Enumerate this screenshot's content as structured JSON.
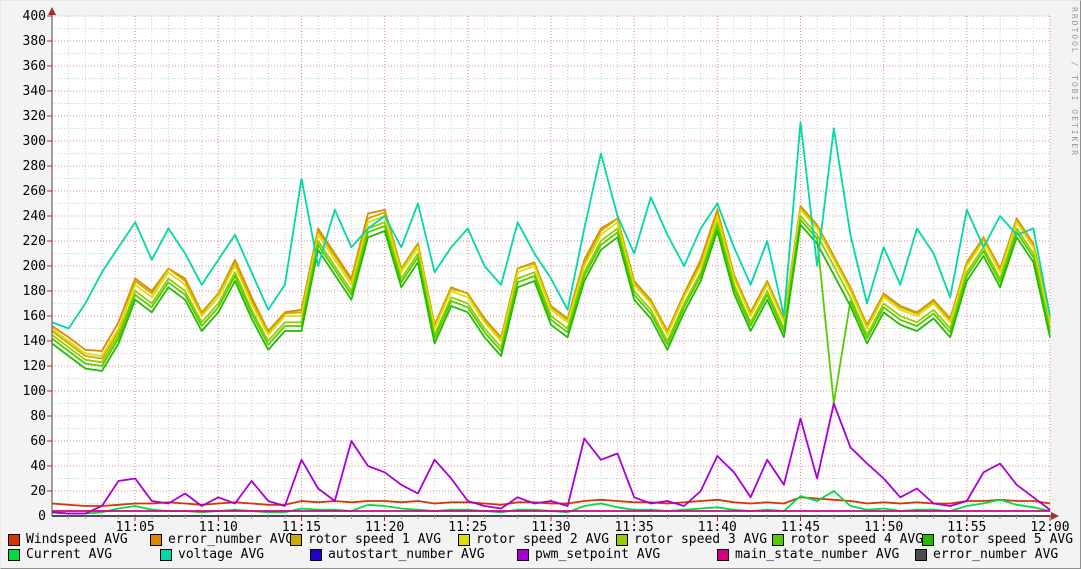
{
  "watermark": "RRDTOOL / TOBI OETIKER",
  "theme": {
    "background": "#f3f3f3",
    "plot_background": "#ffffff",
    "grid_major_color": "#e58a8a",
    "grid_minor_color": "#cccccc",
    "axis_color": "#4a4a4a",
    "arrow_color": "#a03030",
    "tick_major_color": "#cc2222",
    "tick_minor_color": "#cc8888",
    "text_color": "#000000",
    "watermark_color": "#9a9a9a"
  },
  "chart_data": {
    "type": "line",
    "title": "",
    "x_axis": {
      "start_label": "11:00",
      "end_label": "12:00",
      "total_minutes": 60,
      "minutes_per_point": 1,
      "major_tick_minutes": 5,
      "minor_tick_minutes": 1,
      "tick_labels": [
        "11:05",
        "11:10",
        "11:15",
        "11:20",
        "11:25",
        "11:30",
        "11:35",
        "11:40",
        "11:45",
        "11:50",
        "11:55",
        "12:00"
      ]
    },
    "y_axis": {
      "min": 0,
      "max": 400,
      "major_step": 20,
      "minor_step": 10,
      "tick_labels": [
        "0",
        "20",
        "40",
        "60",
        "80",
        "100",
        "120",
        "140",
        "160",
        "180",
        "200",
        "220",
        "240",
        "260",
        "280",
        "300",
        "320",
        "340",
        "360",
        "380",
        "400"
      ]
    },
    "series": [
      {
        "name": "Windspeed AVG",
        "color": "#d63600",
        "values": [
          10,
          9,
          8,
          8,
          9,
          10,
          10,
          11,
          10,
          9,
          10,
          11,
          10,
          9,
          9,
          12,
          11,
          12,
          11,
          12,
          12,
          11,
          12,
          10,
          11,
          11,
          10,
          9,
          11,
          11,
          10,
          10,
          12,
          13,
          12,
          11,
          11,
          10,
          11,
          12,
          13,
          11,
          10,
          11,
          10,
          15,
          14,
          13,
          12,
          10,
          11,
          10,
          11,
          10,
          10,
          12,
          12,
          13,
          12,
          12,
          10
        ]
      },
      {
        "name": "error_number AVG",
        "color": "#dd8800",
        "values": [
          152,
          143,
          133,
          132,
          155,
          190,
          180,
          198,
          190,
          163,
          178,
          205,
          175,
          148,
          163,
          165,
          230,
          210,
          190,
          242,
          245,
          198,
          218,
          153,
          183,
          178,
          158,
          143,
          198,
          203,
          168,
          158,
          205,
          230,
          238,
          188,
          173,
          148,
          178,
          205,
          245,
          193,
          163,
          188,
          158,
          248,
          233,
          208,
          183,
          153,
          178,
          168,
          163,
          173,
          158,
          203,
          223,
          198,
          238,
          218,
          158
        ]
      },
      {
        "name": "rotor speed 1 AVG",
        "color": "#ccaa00",
        "values": [
          148,
          138,
          128,
          126,
          148,
          188,
          178,
          198,
          188,
          162,
          178,
          203,
          172,
          147,
          162,
          163,
          228,
          208,
          188,
          238,
          243,
          198,
          218,
          152,
          182,
          178,
          157,
          142,
          198,
          202,
          167,
          157,
          203,
          228,
          238,
          187,
          172,
          147,
          177,
          202,
          243,
          192,
          162,
          187,
          157,
          247,
          232,
          207,
          182,
          152,
          177,
          167,
          162,
          172,
          157,
          202,
          222,
          197,
          237,
          217,
          157
        ]
      },
      {
        "name": "rotor speed 2 AVG",
        "color": "#dddd00",
        "values": [
          150,
          140,
          130,
          128,
          150,
          185,
          175,
          195,
          185,
          160,
          175,
          200,
          170,
          145,
          160,
          160,
          225,
          205,
          185,
          235,
          240,
          195,
          215,
          150,
          180,
          175,
          155,
          140,
          195,
          200,
          165,
          155,
          200,
          225,
          235,
          185,
          170,
          145,
          175,
          200,
          240,
          190,
          160,
          185,
          155,
          245,
          230,
          205,
          180,
          150,
          175,
          165,
          160,
          170,
          155,
          200,
          220,
          195,
          235,
          215,
          155
        ]
      },
      {
        "name": "rotor speed 3 AVG",
        "color": "#99cc00",
        "values": [
          145,
          135,
          125,
          123,
          145,
          180,
          170,
          190,
          180,
          155,
          170,
          195,
          165,
          140,
          155,
          155,
          220,
          200,
          180,
          230,
          235,
          190,
          210,
          145,
          175,
          170,
          150,
          135,
          190,
          195,
          160,
          150,
          195,
          220,
          230,
          180,
          165,
          140,
          170,
          195,
          235,
          185,
          155,
          180,
          150,
          240,
          225,
          200,
          175,
          145,
          170,
          160,
          155,
          165,
          150,
          195,
          215,
          190,
          230,
          210,
          150
        ]
      },
      {
        "name": "rotor speed 4 AVG",
        "color": "#55cc00",
        "values": [
          142,
          132,
          122,
          120,
          142,
          177,
          167,
          187,
          177,
          152,
          167,
          192,
          162,
          137,
          152,
          152,
          217,
          197,
          177,
          227,
          232,
          187,
          207,
          142,
          172,
          167,
          147,
          132,
          187,
          192,
          157,
          147,
          192,
          217,
          227,
          177,
          162,
          137,
          167,
          192,
          232,
          182,
          152,
          177,
          147,
          237,
          222,
          90,
          172,
          142,
          167,
          157,
          152,
          162,
          147,
          192,
          212,
          187,
          227,
          207,
          147
        ]
      },
      {
        "name": "rotor speed 5 AVG",
        "color": "#22bb00",
        "values": [
          138,
          128,
          118,
          116,
          138,
          173,
          163,
          183,
          173,
          148,
          163,
          188,
          158,
          133,
          148,
          148,
          213,
          193,
          173,
          223,
          228,
          183,
          203,
          138,
          168,
          163,
          143,
          128,
          183,
          188,
          153,
          143,
          188,
          213,
          223,
          173,
          158,
          133,
          163,
          188,
          228,
          178,
          148,
          173,
          143,
          233,
          218,
          193,
          168,
          138,
          163,
          153,
          148,
          158,
          143,
          188,
          208,
          183,
          223,
          203,
          143
        ]
      },
      {
        "name": "Current AVG",
        "color": "#00dd44",
        "values": [
          3,
          2,
          2,
          3,
          6,
          8,
          5,
          4,
          4,
          3,
          4,
          5,
          4,
          3,
          3,
          6,
          5,
          5,
          4,
          9,
          8,
          6,
          5,
          4,
          5,
          5,
          4,
          3,
          5,
          5,
          4,
          3,
          8,
          10,
          7,
          5,
          5,
          4,
          5,
          6,
          7,
          5,
          4,
          5,
          4,
          16,
          12,
          20,
          8,
          5,
          6,
          4,
          5,
          5,
          4,
          8,
          10,
          13,
          9,
          7,
          4
        ]
      },
      {
        "name": "voltage AVG",
        "color": "#00d8a8",
        "values": [
          155,
          150,
          170,
          195,
          215,
          235,
          205,
          230,
          210,
          185,
          205,
          225,
          195,
          165,
          185,
          270,
          200,
          245,
          215,
          230,
          240,
          215,
          250,
          195,
          215,
          230,
          200,
          185,
          235,
          210,
          190,
          165,
          230,
          290,
          240,
          210,
          255,
          225,
          200,
          230,
          250,
          215,
          185,
          220,
          160,
          315,
          200,
          310,
          225,
          170,
          215,
          185,
          230,
          210,
          175,
          245,
          215,
          240,
          225,
          230,
          160
        ]
      },
      {
        "name": "autostart_number AVG",
        "color": "#2200cc",
        "values": [
          0,
          0,
          0,
          0,
          0,
          0,
          0,
          0,
          0,
          0,
          0,
          0,
          0,
          0,
          0,
          0,
          0,
          0,
          0,
          0,
          0,
          0,
          0,
          0,
          0,
          0,
          0,
          0,
          0,
          0,
          0,
          0,
          0,
          0,
          0,
          0,
          0,
          0,
          0,
          0,
          0,
          0,
          0,
          0,
          0,
          0,
          0,
          0,
          0,
          0,
          0,
          0,
          0,
          0,
          0,
          0,
          0,
          0,
          0,
          0,
          0
        ]
      },
      {
        "name": "pwm_setpoint AVG",
        "color": "#a800d4",
        "values": [
          3,
          2,
          2,
          8,
          28,
          30,
          12,
          10,
          18,
          8,
          15,
          10,
          28,
          12,
          8,
          45,
          22,
          12,
          60,
          40,
          35,
          25,
          18,
          45,
          30,
          12,
          8,
          6,
          15,
          10,
          12,
          8,
          62,
          45,
          50,
          15,
          10,
          12,
          8,
          20,
          48,
          35,
          15,
          45,
          25,
          78,
          30,
          90,
          55,
          42,
          30,
          15,
          22,
          10,
          8,
          12,
          35,
          42,
          25,
          15,
          5
        ]
      },
      {
        "name": "main_state_number AVG",
        "color": "#d4007f",
        "values": [
          4,
          4,
          4,
          4,
          4,
          4,
          4,
          4,
          4,
          4,
          4,
          4,
          4,
          4,
          4,
          4,
          4,
          4,
          4,
          4,
          4,
          4,
          4,
          4,
          4,
          4,
          4,
          4,
          4,
          4,
          4,
          4,
          4,
          4,
          4,
          4,
          4,
          4,
          4,
          4,
          4,
          4,
          4,
          4,
          4,
          4,
          4,
          4,
          4,
          4,
          4,
          4,
          4,
          4,
          4,
          4,
          4,
          4,
          4,
          4,
          4
        ]
      },
      {
        "name": "error_number AVG",
        "color": "#4d4d4d",
        "values": [
          0,
          0,
          0,
          0,
          0,
          0,
          0,
          0,
          0,
          0,
          0,
          0,
          0,
          0,
          0,
          0,
          0,
          0,
          0,
          0,
          0,
          0,
          0,
          0,
          0,
          0,
          0,
          0,
          0,
          0,
          0,
          0,
          0,
          0,
          0,
          0,
          0,
          0,
          0,
          0,
          0,
          0,
          0,
          0,
          0,
          0,
          0,
          0,
          0,
          0,
          0,
          0,
          0,
          0,
          0,
          0,
          0,
          0,
          0,
          0,
          0
        ]
      }
    ]
  },
  "legend": {
    "rows": [
      [
        0,
        1,
        2,
        3,
        4,
        5,
        6
      ],
      [
        7,
        8,
        9,
        10,
        11,
        12
      ]
    ]
  }
}
